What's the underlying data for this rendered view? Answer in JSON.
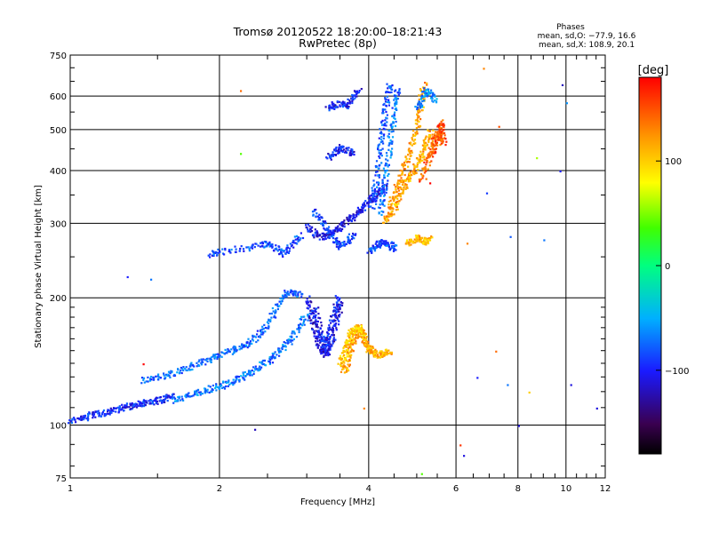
{
  "chart_data": {
    "type": "scatter",
    "title": "Tromsø 20120522 18:20:00–18:21:43",
    "subtitle": "RwPretec (8p)",
    "xlabel": "Frequency [MHz]",
    "ylabel": "Stationary phase Virtual Height [km]",
    "x_scale": "log",
    "y_scale": "log",
    "xlim": [
      1,
      12
    ],
    "ylim": [
      75,
      750
    ],
    "grid": true,
    "x_tick_values": [
      1,
      2,
      4,
      6,
      8,
      10,
      12
    ],
    "x_tick_labels": [
      "1",
      "2",
      "4",
      "6",
      "8",
      "10",
      "12"
    ],
    "y_tick_values": [
      75,
      100,
      200,
      300,
      400,
      500,
      600,
      750
    ],
    "y_tick_labels": [
      "75",
      "100",
      "200",
      "300",
      "400",
      "500",
      "600",
      "750"
    ],
    "phases_box": {
      "title": "Phases",
      "line1": "mean, sd,O: −77.9, 16.6",
      "line2": "mean, sd,X: 108.9, 20.1"
    },
    "colorbar": {
      "label": "[deg]",
      "range": [
        -180,
        180
      ],
      "tick_values": [
        100,
        0,
        -100
      ],
      "tick_labels": [
        "100",
        "0",
        "−100"
      ],
      "colormap": "rainbow"
    },
    "traces": [
      {
        "phase": -95,
        "points": [
          [
            1.0,
            103
          ],
          [
            1.05,
            104
          ],
          [
            1.1,
            106
          ],
          [
            1.15,
            107
          ],
          [
            1.2,
            108
          ],
          [
            1.25,
            110
          ],
          [
            1.3,
            111
          ],
          [
            1.35,
            112
          ],
          [
            1.4,
            113
          ],
          [
            1.45,
            114
          ],
          [
            1.5,
            115
          ],
          [
            1.55,
            116
          ],
          [
            1.6,
            118
          ]
        ]
      },
      {
        "phase": -70,
        "points": [
          [
            1.6,
            115
          ],
          [
            1.7,
            117
          ],
          [
            1.8,
            120
          ],
          [
            1.9,
            122
          ],
          [
            2.0,
            124
          ],
          [
            2.1,
            127
          ],
          [
            2.2,
            130
          ],
          [
            2.3,
            134
          ],
          [
            2.4,
            138
          ],
          [
            2.5,
            142
          ],
          [
            2.6,
            148
          ],
          [
            2.7,
            155
          ],
          [
            2.8,
            162
          ],
          [
            2.9,
            172
          ],
          [
            3.0,
            185
          ]
        ]
      },
      {
        "phase": -75,
        "points": [
          [
            1.4,
            128
          ],
          [
            1.5,
            130
          ],
          [
            1.6,
            133
          ],
          [
            1.7,
            136
          ],
          [
            1.8,
            140
          ],
          [
            1.9,
            143
          ],
          [
            2.0,
            147
          ],
          [
            2.1,
            150
          ],
          [
            2.2,
            154
          ],
          [
            2.3,
            158
          ],
          [
            2.4,
            165
          ],
          [
            2.5,
            175
          ],
          [
            2.6,
            190
          ],
          [
            2.7,
            205
          ],
          [
            2.8,
            208
          ],
          [
            2.9,
            205
          ]
        ]
      },
      {
        "phase": -110,
        "points": [
          [
            3.0,
            200
          ],
          [
            3.05,
            185
          ],
          [
            3.1,
            170
          ],
          [
            3.15,
            160
          ],
          [
            3.2,
            152
          ],
          [
            3.25,
            148
          ],
          [
            3.3,
            150
          ],
          [
            3.35,
            158
          ],
          [
            3.4,
            170
          ],
          [
            3.45,
            185
          ],
          [
            3.5,
            195
          ]
        ]
      },
      {
        "phase": -100,
        "points": [
          [
            3.1,
            190
          ],
          [
            3.15,
            175
          ],
          [
            3.2,
            162
          ],
          [
            3.25,
            155
          ],
          [
            3.3,
            160
          ],
          [
            3.35,
            172
          ],
          [
            3.4,
            186
          ],
          [
            3.45,
            200
          ]
        ]
      },
      {
        "phase": 115,
        "points": [
          [
            3.55,
            135
          ],
          [
            3.6,
            140
          ],
          [
            3.65,
            148
          ],
          [
            3.7,
            157
          ],
          [
            3.75,
            165
          ],
          [
            3.8,
            170
          ],
          [
            3.85,
            166
          ],
          [
            3.9,
            160
          ],
          [
            3.95,
            155
          ],
          [
            4.0,
            152
          ],
          [
            4.05,
            150
          ],
          [
            4.1,
            148
          ],
          [
            4.2,
            147
          ],
          [
            4.3,
            150
          ],
          [
            4.4,
            148
          ]
        ]
      },
      {
        "phase": 100,
        "points": [
          [
            3.5,
            140
          ],
          [
            3.55,
            147
          ],
          [
            3.6,
            155
          ],
          [
            3.65,
            162
          ],
          [
            3.7,
            168
          ],
          [
            3.8,
            172
          ],
          [
            3.9,
            165
          ]
        ]
      },
      {
        "phase": -85,
        "points": [
          [
            1.9,
            255
          ],
          [
            2.0,
            258
          ],
          [
            2.2,
            262
          ],
          [
            2.4,
            268
          ],
          [
            2.5,
            270
          ],
          [
            2.6,
            262
          ],
          [
            2.7,
            255
          ],
          [
            2.8,
            270
          ],
          [
            2.9,
            282
          ]
        ]
      },
      {
        "phase": -105,
        "points": [
          [
            3.0,
            295
          ],
          [
            3.1,
            285
          ],
          [
            3.2,
            280
          ],
          [
            3.3,
            282
          ],
          [
            3.4,
            290
          ],
          [
            3.5,
            295
          ],
          [
            3.6,
            305
          ],
          [
            3.7,
            312
          ],
          [
            3.8,
            320
          ],
          [
            3.9,
            330
          ],
          [
            4.0,
            340
          ],
          [
            4.1,
            350
          ],
          [
            4.2,
            360
          ],
          [
            4.3,
            368
          ]
        ]
      },
      {
        "phase": -90,
        "points": [
          [
            3.1,
            320
          ],
          [
            3.2,
            305
          ],
          [
            3.3,
            290
          ],
          [
            3.4,
            275
          ],
          [
            3.5,
            265
          ],
          [
            3.6,
            272
          ],
          [
            3.7,
            285
          ]
        ]
      },
      {
        "phase": -80,
        "points": [
          [
            4.05,
            330
          ],
          [
            4.1,
            360
          ],
          [
            4.15,
            400
          ],
          [
            4.2,
            450
          ],
          [
            4.25,
            500
          ],
          [
            4.3,
            550
          ],
          [
            4.35,
            600
          ],
          [
            4.4,
            640
          ]
        ]
      },
      {
        "phase": -70,
        "points": [
          [
            4.2,
            320
          ],
          [
            4.25,
            350
          ],
          [
            4.3,
            380
          ],
          [
            4.35,
            420
          ],
          [
            4.4,
            470
          ],
          [
            4.45,
            520
          ],
          [
            4.5,
            580
          ],
          [
            4.55,
            630
          ]
        ]
      },
      {
        "phase": -85,
        "points": [
          [
            4.0,
            260
          ],
          [
            4.1,
            265
          ],
          [
            4.2,
            270
          ],
          [
            4.3,
            272
          ],
          [
            4.4,
            268
          ],
          [
            4.5,
            262
          ]
        ]
      },
      {
        "phase": -100,
        "points": [
          [
            3.3,
            430
          ],
          [
            3.4,
            445
          ],
          [
            3.5,
            455
          ],
          [
            3.6,
            448
          ],
          [
            3.7,
            440
          ]
        ]
      },
      {
        "phase": -100,
        "points": [
          [
            3.3,
            560
          ],
          [
            3.4,
            575
          ],
          [
            3.5,
            580
          ],
          [
            3.6,
            570
          ],
          [
            3.7,
            595
          ],
          [
            3.8,
            620
          ]
        ]
      },
      {
        "phase": 115,
        "points": [
          [
            4.3,
            305
          ],
          [
            4.4,
            315
          ],
          [
            4.5,
            330
          ],
          [
            4.6,
            350
          ],
          [
            4.7,
            370
          ],
          [
            4.8,
            385
          ],
          [
            4.9,
            400
          ],
          [
            5.0,
            420
          ],
          [
            5.1,
            440
          ],
          [
            5.2,
            470
          ],
          [
            5.3,
            500
          ]
        ]
      },
      {
        "phase": 120,
        "points": [
          [
            4.4,
            330
          ],
          [
            4.5,
            355
          ],
          [
            4.6,
            380
          ],
          [
            4.7,
            410
          ],
          [
            4.8,
            440
          ],
          [
            4.9,
            480
          ],
          [
            5.0,
            520
          ],
          [
            5.05,
            560
          ],
          [
            5.1,
            600
          ],
          [
            5.15,
            640
          ]
        ]
      },
      {
        "phase": 110,
        "points": [
          [
            4.8,
            270
          ],
          [
            4.9,
            275
          ],
          [
            5.0,
            278
          ],
          [
            5.1,
            275
          ],
          [
            5.2,
            272
          ],
          [
            5.3,
            278
          ]
        ]
      },
      {
        "phase": 140,
        "points": [
          [
            5.1,
            380
          ],
          [
            5.2,
            410
          ],
          [
            5.3,
            440
          ],
          [
            5.4,
            470
          ],
          [
            5.5,
            490
          ],
          [
            5.6,
            470
          ]
        ]
      },
      {
        "phase": 150,
        "points": [
          [
            5.3,
            430
          ],
          [
            5.4,
            460
          ],
          [
            5.5,
            490
          ],
          [
            5.55,
            520
          ],
          [
            5.6,
            500
          ],
          [
            5.65,
            470
          ]
        ]
      },
      {
        "phase": -60,
        "points": [
          [
            5.0,
            560
          ],
          [
            5.1,
            590
          ],
          [
            5.2,
            620
          ],
          [
            5.3,
            610
          ],
          [
            5.4,
            590
          ]
        ]
      }
    ],
    "scattered": [
      [
        6.8,
        700,
        130
      ],
      [
        9.8,
        640,
        -120
      ],
      [
        9.7,
        400,
        -100
      ],
      [
        10.0,
        580,
        -60
      ],
      [
        7.3,
        510,
        150
      ],
      [
        8.7,
        430,
        60
      ],
      [
        2.2,
        620,
        140
      ],
      [
        2.2,
        440,
        40
      ],
      [
        6.1,
        90,
        160
      ],
      [
        6.2,
        85,
        -110
      ],
      [
        5.1,
        77,
        40
      ],
      [
        6.6,
        130,
        -100
      ],
      [
        7.2,
        150,
        140
      ],
      [
        7.6,
        125,
        -70
      ],
      [
        8.4,
        120,
        100
      ],
      [
        10.2,
        125,
        -110
      ],
      [
        11.5,
        110,
        -110
      ],
      [
        8.0,
        100,
        -110
      ],
      [
        2.35,
        98,
        -120
      ],
      [
        1.4,
        140,
        190
      ],
      [
        1.3,
        225,
        -100
      ],
      [
        1.45,
        222,
        -70
      ],
      [
        3.9,
        110,
        130
      ],
      [
        6.9,
        355,
        -90
      ],
      [
        6.3,
        270,
        130
      ],
      [
        7.7,
        280,
        -80
      ],
      [
        9.0,
        275,
        -70
      ],
      [
        5.3,
        375,
        180
      ]
    ]
  }
}
